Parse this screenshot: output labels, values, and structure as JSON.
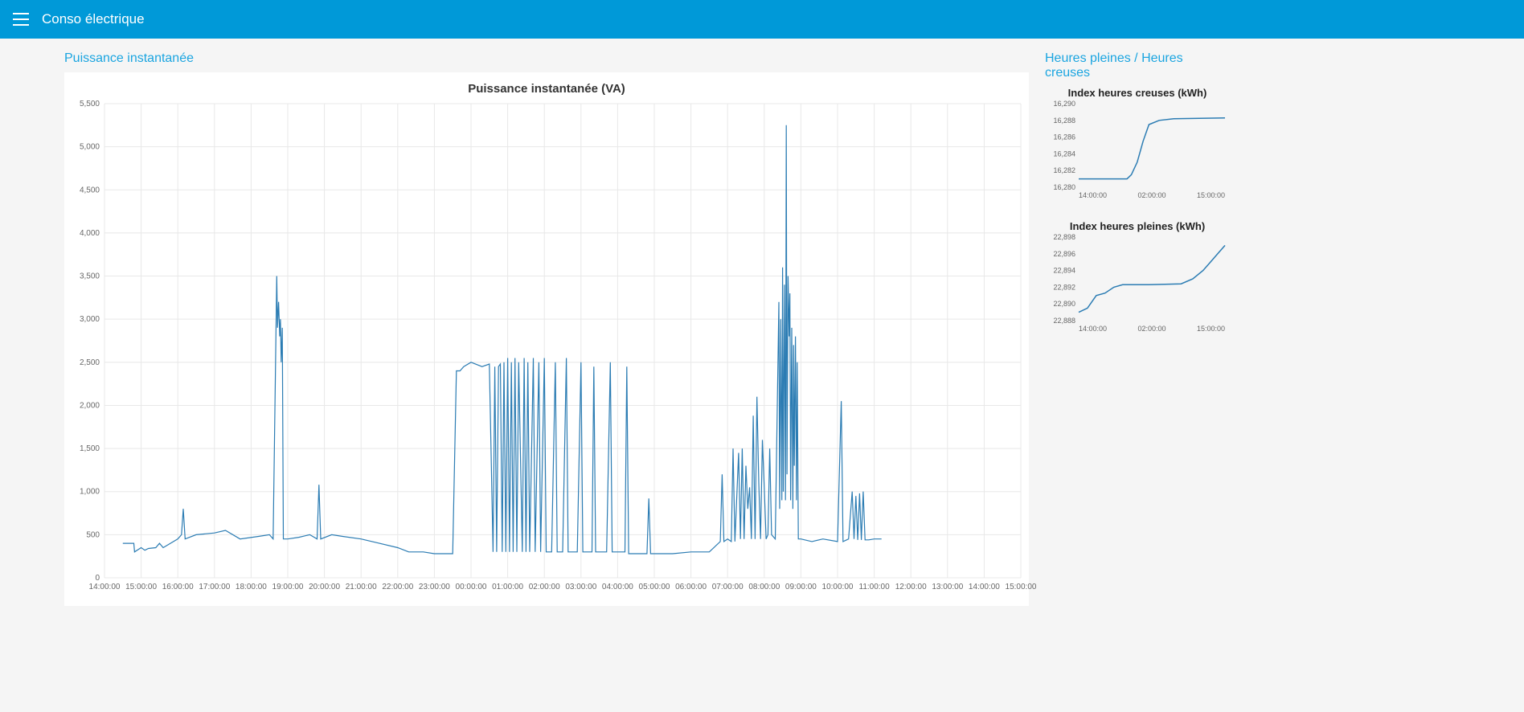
{
  "header": {
    "title": "Conso électrique"
  },
  "main": {
    "section_title": "Puissance instantanée",
    "chart": {
      "type": "line",
      "title": "Puissance instantanée (VA)",
      "line_color": "#2b7cb3",
      "grid_color": "#e8e8e8",
      "background_color": "#ffffff",
      "ylim": [
        0,
        5500
      ],
      "ytick_step": 500,
      "yticks": [
        "0",
        "500",
        "1,000",
        "1,500",
        "2,000",
        "2,500",
        "3,000",
        "3,500",
        "4,000",
        "4,500",
        "5,000",
        "5,500"
      ],
      "xticks": [
        "14:00:00",
        "15:00:00",
        "16:00:00",
        "17:00:00",
        "18:00:00",
        "19:00:00",
        "20:00:00",
        "21:00:00",
        "22:00:00",
        "23:00:00",
        "00:00:00",
        "01:00:00",
        "02:00:00",
        "03:00:00",
        "04:00:00",
        "05:00:00",
        "06:00:00",
        "07:00:00",
        "08:00:00",
        "09:00:00",
        "10:00:00",
        "11:00:00",
        "12:00:00",
        "13:00:00",
        "14:00:00",
        "15:00:00"
      ],
      "data": [
        [
          0.5,
          400
        ],
        [
          0.8,
          400
        ],
        [
          0.82,
          300
        ],
        [
          1.0,
          350
        ],
        [
          1.1,
          320
        ],
        [
          1.2,
          340
        ],
        [
          1.4,
          350
        ],
        [
          1.5,
          400
        ],
        [
          1.6,
          350
        ],
        [
          2.0,
          450
        ],
        [
          2.1,
          500
        ],
        [
          2.15,
          800
        ],
        [
          2.2,
          450
        ],
        [
          2.5,
          500
        ],
        [
          3.0,
          520
        ],
        [
          3.3,
          550
        ],
        [
          3.7,
          450
        ],
        [
          4.2,
          480
        ],
        [
          4.5,
          500
        ],
        [
          4.6,
          450
        ],
        [
          4.7,
          3500
        ],
        [
          4.72,
          2900
        ],
        [
          4.75,
          3200
        ],
        [
          4.78,
          2800
        ],
        [
          4.8,
          3000
        ],
        [
          4.82,
          2500
        ],
        [
          4.85,
          2900
        ],
        [
          4.88,
          450
        ],
        [
          5.0,
          450
        ],
        [
          5.3,
          470
        ],
        [
          5.6,
          500
        ],
        [
          5.8,
          450
        ],
        [
          5.85,
          1080
        ],
        [
          5.9,
          450
        ],
        [
          6.2,
          500
        ],
        [
          6.5,
          480
        ],
        [
          7.0,
          450
        ],
        [
          7.5,
          400
        ],
        [
          8.0,
          350
        ],
        [
          8.3,
          300
        ],
        [
          8.7,
          300
        ],
        [
          9.0,
          280
        ],
        [
          9.3,
          280
        ],
        [
          9.5,
          280
        ],
        [
          9.6,
          2400
        ],
        [
          9.7,
          2400
        ],
        [
          9.8,
          2450
        ],
        [
          10.0,
          2500
        ],
        [
          10.3,
          2450
        ],
        [
          10.5,
          2480
        ],
        [
          10.6,
          300
        ],
        [
          10.65,
          2450
        ],
        [
          10.7,
          300
        ],
        [
          10.75,
          2450
        ],
        [
          10.8,
          2480
        ],
        [
          10.85,
          300
        ],
        [
          10.9,
          2500
        ],
        [
          10.95,
          300
        ],
        [
          11.0,
          2550
        ],
        [
          11.05,
          300
        ],
        [
          11.1,
          2500
        ],
        [
          11.15,
          300
        ],
        [
          11.2,
          2550
        ],
        [
          11.25,
          300
        ],
        [
          11.3,
          2500
        ],
        [
          11.4,
          300
        ],
        [
          11.45,
          2550
        ],
        [
          11.5,
          300
        ],
        [
          11.55,
          2500
        ],
        [
          11.6,
          300
        ],
        [
          11.7,
          2550
        ],
        [
          11.75,
          300
        ],
        [
          11.85,
          2500
        ],
        [
          11.9,
          300
        ],
        [
          12.0,
          2550
        ],
        [
          12.05,
          300
        ],
        [
          12.2,
          300
        ],
        [
          12.3,
          2500
        ],
        [
          12.35,
          300
        ],
        [
          12.5,
          300
        ],
        [
          12.6,
          2550
        ],
        [
          12.65,
          300
        ],
        [
          12.9,
          300
        ],
        [
          13.0,
          2500
        ],
        [
          13.05,
          300
        ],
        [
          13.3,
          300
        ],
        [
          13.35,
          2450
        ],
        [
          13.4,
          300
        ],
        [
          13.7,
          300
        ],
        [
          13.8,
          2500
        ],
        [
          13.85,
          300
        ],
        [
          14.2,
          300
        ],
        [
          14.25,
          2450
        ],
        [
          14.3,
          280
        ],
        [
          14.8,
          280
        ],
        [
          14.85,
          920
        ],
        [
          14.9,
          280
        ],
        [
          15.0,
          280
        ],
        [
          15.5,
          280
        ],
        [
          16.0,
          300
        ],
        [
          16.5,
          300
        ],
        [
          16.8,
          420
        ],
        [
          16.85,
          1200
        ],
        [
          16.9,
          420
        ],
        [
          17.0,
          450
        ],
        [
          17.1,
          420
        ],
        [
          17.15,
          1500
        ],
        [
          17.2,
          420
        ],
        [
          17.3,
          1450
        ],
        [
          17.35,
          450
        ],
        [
          17.4,
          1500
        ],
        [
          17.45,
          450
        ],
        [
          17.5,
          1300
        ],
        [
          17.55,
          800
        ],
        [
          17.6,
          1050
        ],
        [
          17.65,
          450
        ],
        [
          17.7,
          1880
        ],
        [
          17.75,
          450
        ],
        [
          17.8,
          2100
        ],
        [
          17.85,
          1100
        ],
        [
          17.9,
          450
        ],
        [
          17.95,
          1600
        ],
        [
          18.0,
          1050
        ],
        [
          18.05,
          450
        ],
        [
          18.1,
          500
        ],
        [
          18.15,
          1500
        ],
        [
          18.2,
          500
        ],
        [
          18.3,
          450
        ],
        [
          18.4,
          3200
        ],
        [
          18.42,
          800
        ],
        [
          18.45,
          3000
        ],
        [
          18.48,
          900
        ],
        [
          18.5,
          3600
        ],
        [
          18.52,
          1000
        ],
        [
          18.55,
          3400
        ],
        [
          18.58,
          900
        ],
        [
          18.6,
          5250
        ],
        [
          18.62,
          1200
        ],
        [
          18.65,
          3500
        ],
        [
          18.68,
          2800
        ],
        [
          18.7,
          3300
        ],
        [
          18.72,
          900
        ],
        [
          18.75,
          2900
        ],
        [
          18.78,
          800
        ],
        [
          18.8,
          2700
        ],
        [
          18.82,
          1300
        ],
        [
          18.85,
          2800
        ],
        [
          18.88,
          900
        ],
        [
          18.9,
          2500
        ],
        [
          18.93,
          450
        ],
        [
          19.0,
          450
        ],
        [
          19.3,
          420
        ],
        [
          19.6,
          450
        ],
        [
          20.0,
          420
        ],
        [
          20.1,
          2050
        ],
        [
          20.15,
          420
        ],
        [
          20.3,
          450
        ],
        [
          20.4,
          1000
        ],
        [
          20.45,
          450
        ],
        [
          20.5,
          950
        ],
        [
          20.55,
          440
        ],
        [
          20.6,
          980
        ],
        [
          20.65,
          440
        ],
        [
          20.7,
          1000
        ],
        [
          20.75,
          440
        ],
        [
          20.85,
          440
        ],
        [
          21.0,
          450
        ],
        [
          21.2,
          450
        ]
      ]
    }
  },
  "side": {
    "section_title": "Heures pleines / Heures creuses",
    "chart_hc": {
      "type": "line",
      "title": "Index heures creuses (kWh)",
      "line_color": "#2b7cb3",
      "ylim": [
        16280,
        16290
      ],
      "yticks": [
        "16,280",
        "16,282",
        "16,284",
        "16,286",
        "16,288",
        "16,290"
      ],
      "xticks": [
        "14:00:00",
        "02:00:00",
        "15:00:00"
      ],
      "data": [
        [
          0,
          16281
        ],
        [
          0.33,
          16281
        ],
        [
          0.36,
          16281.5
        ],
        [
          0.4,
          16283
        ],
        [
          0.44,
          16285.5
        ],
        [
          0.48,
          16287.5
        ],
        [
          0.55,
          16288
        ],
        [
          0.65,
          16288.2
        ],
        [
          1.0,
          16288.3
        ]
      ]
    },
    "chart_hp": {
      "type": "line",
      "title": "Index heures pleines (kWh)",
      "line_color": "#2b7cb3",
      "ylim": [
        22888,
        22898
      ],
      "yticks": [
        "22,888",
        "22,890",
        "22,892",
        "22,894",
        "22,896",
        "22,898"
      ],
      "xticks": [
        "14:00:00",
        "02:00:00",
        "15:00:00"
      ],
      "data": [
        [
          0,
          22889
        ],
        [
          0.06,
          22889.5
        ],
        [
          0.12,
          22891
        ],
        [
          0.18,
          22891.3
        ],
        [
          0.24,
          22892
        ],
        [
          0.3,
          22892.3
        ],
        [
          0.48,
          22892.3
        ],
        [
          0.7,
          22892.4
        ],
        [
          0.78,
          22893
        ],
        [
          0.85,
          22894
        ],
        [
          0.9,
          22895
        ],
        [
          0.95,
          22896
        ],
        [
          1.0,
          22897
        ]
      ]
    }
  }
}
